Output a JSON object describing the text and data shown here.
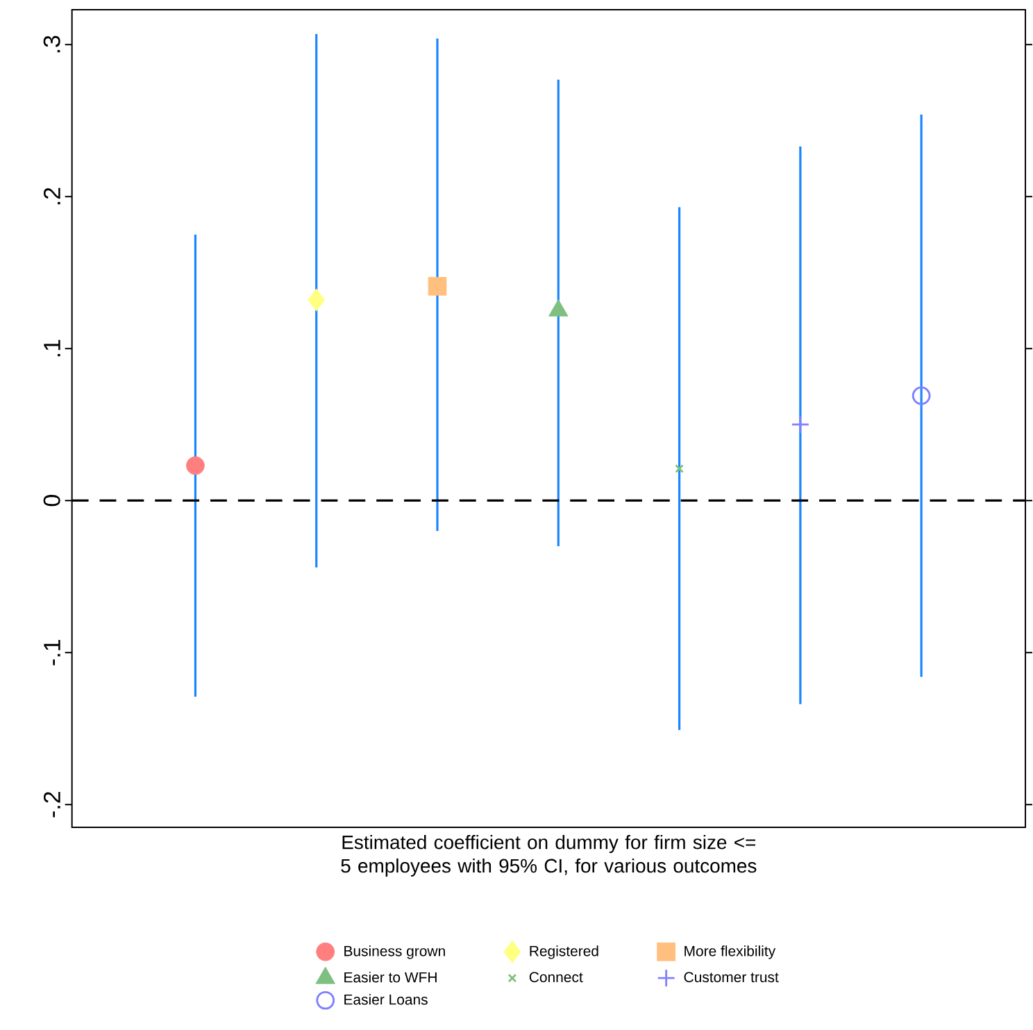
{
  "chart_data": {
    "type": "scatter",
    "xlabel": "Estimated coefficient on dummy for firm size <= 5 employees with 95% CI, for various outcomes",
    "categories": [
      null,
      null,
      null,
      null,
      null,
      null,
      null
    ],
    "ylim": [
      -0.215,
      0.323
    ],
    "yticks": [
      {
        "value": -0.2,
        "label": "-.2"
      },
      {
        "value": -0.1,
        "label": "-.1"
      },
      {
        "value": 0,
        "label": "0"
      },
      {
        "value": 0.1,
        "label": ".1"
      },
      {
        "value": 0.2,
        "label": ".2"
      },
      {
        "value": 0.3,
        "label": ".3"
      }
    ],
    "ref_lines": [
      {
        "axis": "y",
        "value": 0,
        "color": "#000000",
        "line_style": "dashed"
      }
    ],
    "legend": "bottom",
    "grid": false,
    "series": [
      {
        "name": "Business grown",
        "color": "#ff7f7f",
        "marker": "circle",
        "values": [
          0.023,
          null,
          null,
          null,
          null,
          null,
          null
        ],
        "errors": [
          [
            -0.129,
            0.175
          ],
          null,
          null,
          null,
          null,
          null,
          null
        ]
      },
      {
        "name": "Registered",
        "color": "#ffff80",
        "marker": "diamond",
        "values": [
          null,
          0.132,
          null,
          null,
          null,
          null,
          null
        ],
        "errors": [
          null,
          [
            -0.044,
            0.307
          ],
          null,
          null,
          null,
          null,
          null
        ]
      },
      {
        "name": "More flexibility",
        "color": "#ffbf7f",
        "marker": "square",
        "values": [
          null,
          null,
          0.141,
          null,
          null,
          null,
          null
        ],
        "errors": [
          null,
          null,
          [
            -0.02,
            0.304
          ],
          null,
          null,
          null,
          null
        ]
      },
      {
        "name": "Easier to WFH",
        "color": "#7fbf7f",
        "marker": "triangle",
        "values": [
          null,
          null,
          null,
          0.125,
          null,
          null,
          null
        ],
        "errors": [
          null,
          null,
          null,
          [
            -0.03,
            0.277
          ],
          null,
          null,
          null
        ]
      },
      {
        "name": "Connect",
        "color": "#7fbf7f",
        "marker": "cross",
        "values": [
          null,
          null,
          null,
          null,
          0.021,
          null,
          null
        ],
        "errors": [
          null,
          null,
          null,
          null,
          [
            -0.151,
            0.193
          ],
          null,
          null
        ]
      },
      {
        "name": "Customer trust",
        "color": "#8080ff",
        "marker": "plus",
        "values": [
          null,
          null,
          null,
          null,
          null,
          0.05,
          null
        ],
        "errors": [
          null,
          null,
          null,
          null,
          null,
          [
            -0.134,
            0.233
          ],
          null
        ]
      },
      {
        "name": "Easier Loans",
        "color": "#8080ff",
        "marker": "circle-open",
        "values": [
          null,
          null,
          null,
          null,
          null,
          null,
          0.069
        ],
        "errors": [
          null,
          null,
          null,
          null,
          null,
          null,
          [
            -0.116,
            0.254
          ]
        ]
      }
    ]
  }
}
